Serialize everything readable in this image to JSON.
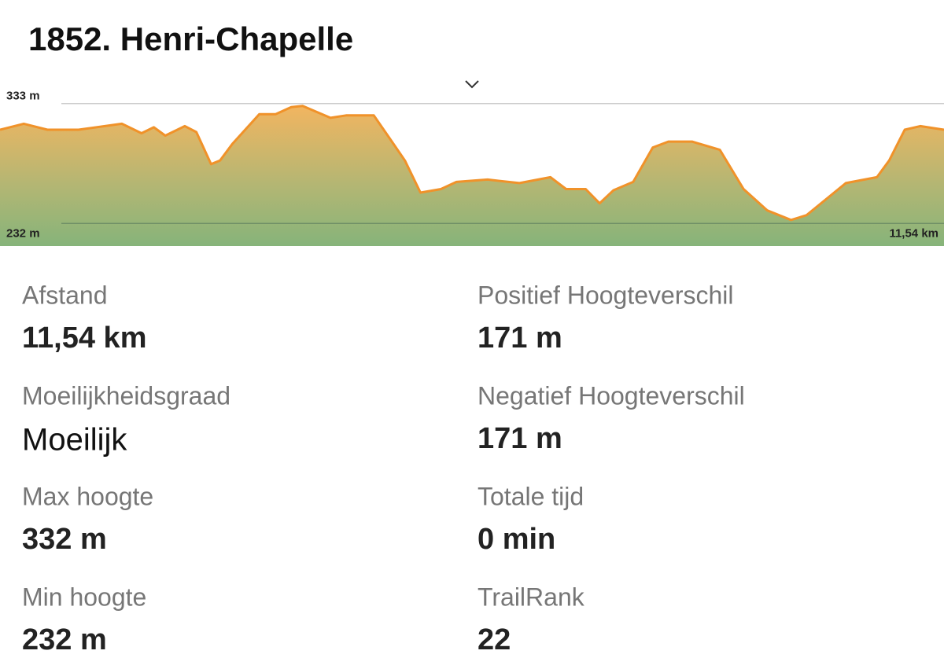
{
  "header": {
    "title": "1852. Henri-Chapelle"
  },
  "chart_data": {
    "type": "area",
    "x": [
      0,
      0.29,
      0.58,
      0.96,
      1.49,
      1.73,
      1.88,
      2.02,
      2.26,
      2.4,
      2.58,
      2.69,
      2.84,
      3.17,
      3.37,
      3.56,
      3.7,
      4.04,
      4.23,
      4.57,
      4.76,
      4.95,
      5.14,
      5.39,
      5.58,
      5.96,
      6.35,
      6.73,
      6.92,
      7.16,
      7.33,
      7.5,
      7.74,
      7.98,
      8.17,
      8.46,
      8.8,
      9.09,
      9.38,
      9.67,
      9.86,
      10.34,
      10.72,
      10.87,
      11.06,
      11.25,
      11.54
    ],
    "values": [
      311,
      316,
      311,
      311,
      316,
      308,
      313,
      306,
      314,
      309,
      282,
      285,
      299,
      324,
      324,
      330,
      331,
      321,
      323,
      323,
      304,
      285,
      258,
      261,
      267,
      269,
      266,
      271,
      261,
      261,
      249,
      260,
      267,
      296,
      301,
      301,
      294,
      261,
      243,
      235,
      239,
      266,
      271,
      285,
      311,
      314,
      311
    ],
    "color": "#f0922a",
    "xlim": [
      0,
      11.54
    ],
    "ylim": [
      213,
      354
    ],
    "yticks": [
      {
        "value": 333,
        "label": "333 m"
      },
      {
        "value": 232,
        "label": "232 m"
      }
    ],
    "xticks": [
      {
        "value": 11.54,
        "label": "11,54 km"
      }
    ],
    "grid": true
  },
  "stats": [
    {
      "label": "Afstand",
      "value": "11,54 km"
    },
    {
      "label": "Positief Hoogteverschil",
      "value": "171 m"
    },
    {
      "label": "Moeilijkheidsgraad",
      "value": "Moeilijk"
    },
    {
      "label": "Negatief Hoogteverschil",
      "value": "171 m"
    },
    {
      "label": "Max hoogte",
      "value": "332 m"
    },
    {
      "label": "Totale tijd",
      "value": "0 min"
    },
    {
      "label": "Min hoogte",
      "value": "232 m"
    },
    {
      "label": "TrailRank",
      "value": "22"
    }
  ]
}
